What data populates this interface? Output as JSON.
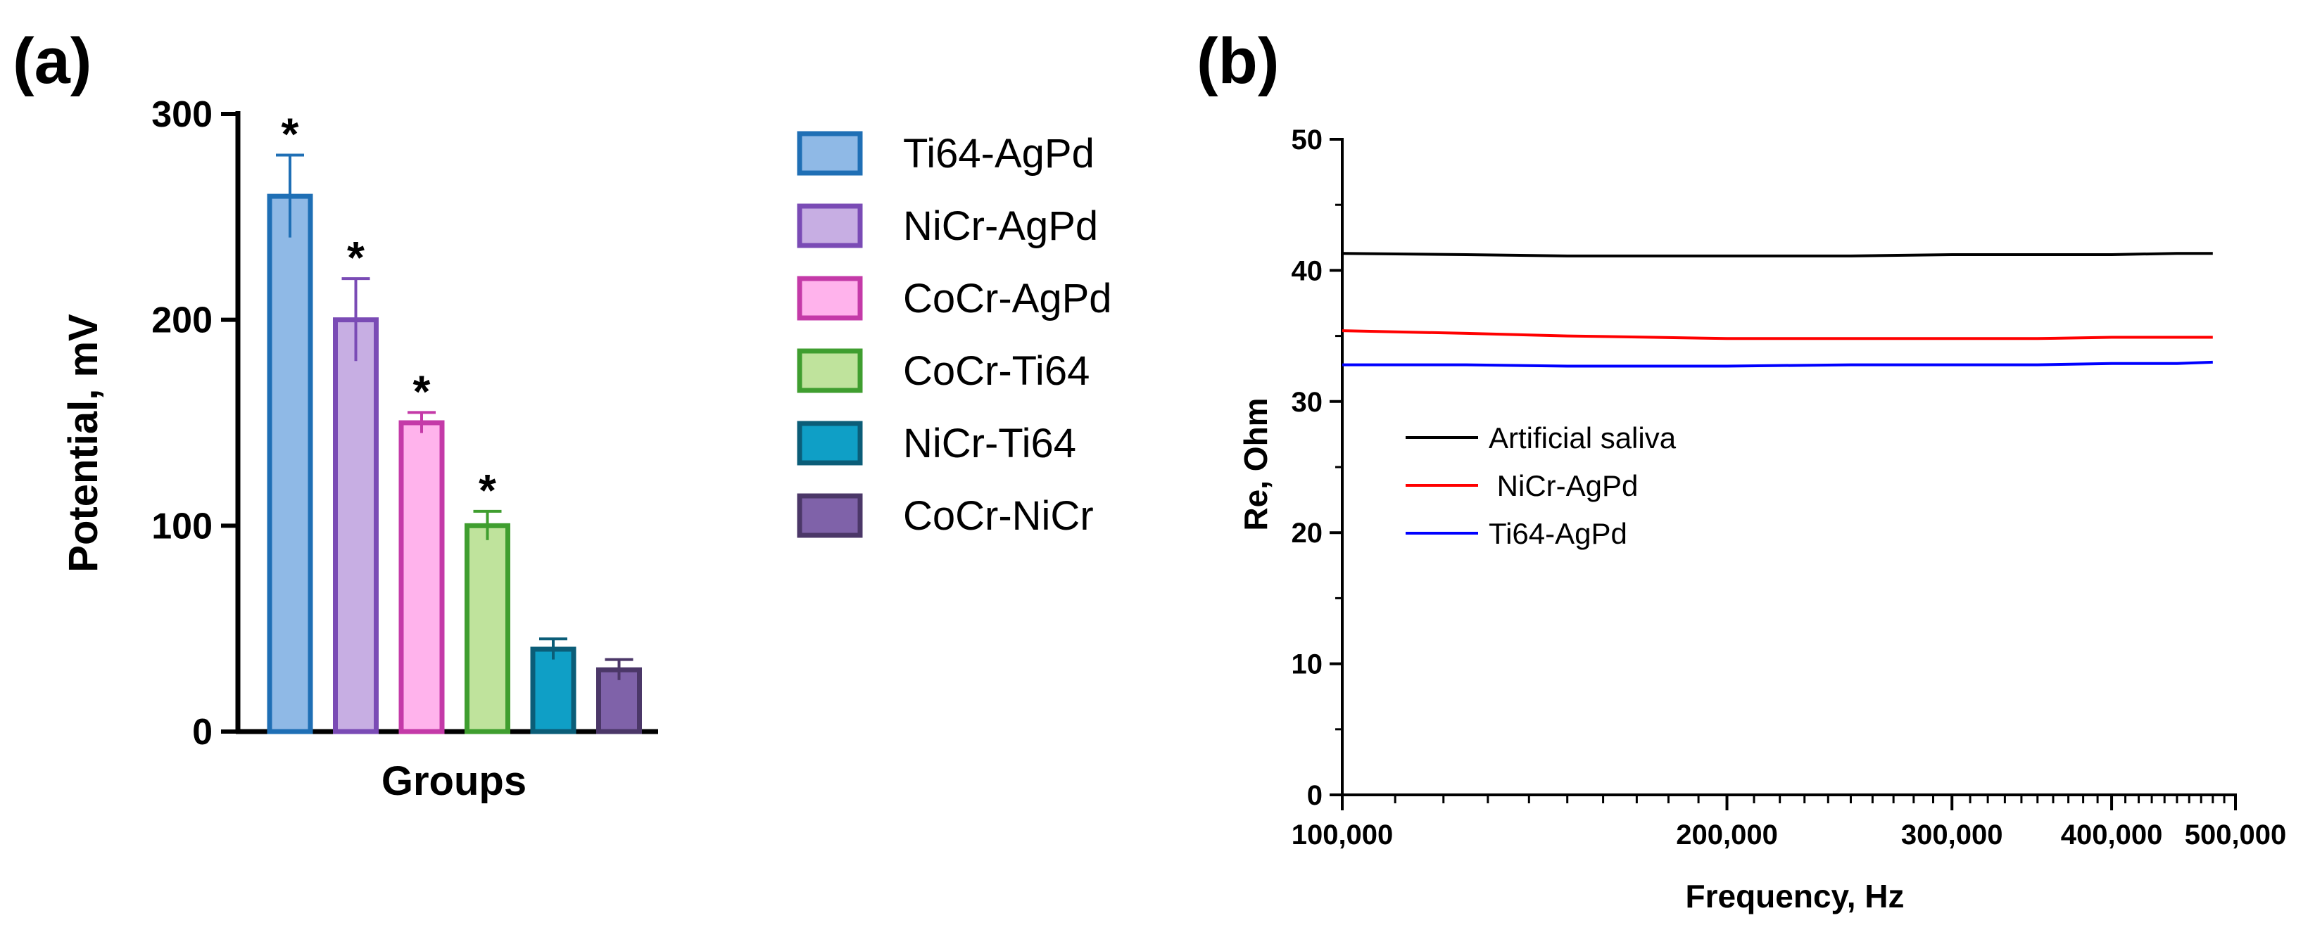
{
  "chart_data": [
    {
      "type": "bar",
      "panel_label": "(a)",
      "title": "",
      "xlabel": "Groups",
      "ylabel": "Potential, mV",
      "ylim": [
        0,
        300
      ],
      "yticks": [
        0,
        100,
        200,
        300
      ],
      "categories": [
        "Ti64-AgPd",
        "NiCr-AgPd",
        "CoCr-AgPd",
        "CoCr-Ti64",
        "NiCr-Ti64",
        "CoCr-NiCr"
      ],
      "values": [
        260,
        200,
        150,
        100,
        40,
        30
      ],
      "errors": [
        20,
        20,
        5,
        7,
        5,
        5
      ],
      "significance": [
        "*",
        "*",
        "*",
        "*",
        "",
        ""
      ],
      "fill_colors": [
        "#8fb9e6",
        "#c7aee3",
        "#ffb3ec",
        "#bfe39c",
        "#0f9fc6",
        "#7f62a9"
      ],
      "edge_colors": [
        "#1f6fb5",
        "#7a4bb5",
        "#c43aa8",
        "#3f9e2f",
        "#0b5d78",
        "#4b3768"
      ],
      "legend_position": "right"
    },
    {
      "type": "line",
      "panel_label": "(b)",
      "title": "",
      "xlabel": "Frequency, Hz",
      "ylabel": "Re, Ohm",
      "xscale": "log",
      "xlim": [
        100000,
        500000
      ],
      "ylim": [
        0,
        50
      ],
      "xtick_labels": [
        "100,000",
        "200,000",
        "300,000",
        "400,000",
        "500,000"
      ],
      "xticks": [
        100000,
        200000,
        300000,
        400000,
        500000
      ],
      "yticks": [
        0,
        10,
        20,
        30,
        40,
        50
      ],
      "x": [
        100000,
        125000,
        150000,
        175000,
        200000,
        250000,
        300000,
        350000,
        400000,
        450000,
        480000
      ],
      "series": [
        {
          "name": "Artificial saliva",
          "color": "#000000",
          "values": [
            41.3,
            41.2,
            41.1,
            41.1,
            41.1,
            41.1,
            41.2,
            41.2,
            41.2,
            41.3,
            41.3
          ]
        },
        {
          "name": " NiCr-AgPd",
          "color": "#ff0000",
          "values": [
            35.4,
            35.2,
            35.0,
            34.9,
            34.8,
            34.8,
            34.8,
            34.8,
            34.9,
            34.9,
            34.9
          ]
        },
        {
          "name": "Ti64-AgPd",
          "color": "#0000ff",
          "values": [
            32.8,
            32.8,
            32.7,
            32.7,
            32.7,
            32.8,
            32.8,
            32.8,
            32.9,
            32.9,
            33.0
          ]
        }
      ],
      "legend_position": "center-left"
    }
  ]
}
